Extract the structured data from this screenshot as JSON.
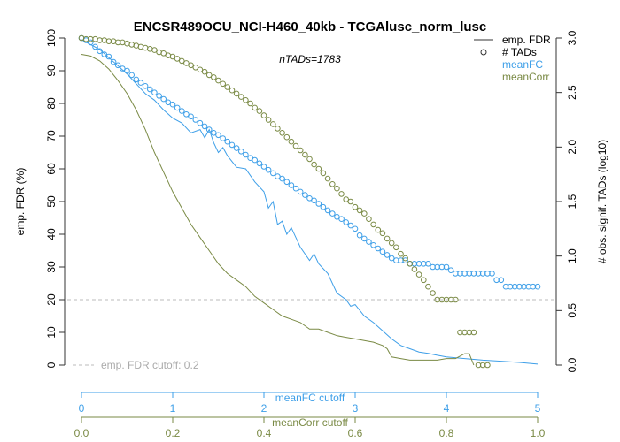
{
  "chart_data": {
    "type": "line",
    "title": "ENCSR489OCU_NCI-H460_40kb - TCGAlusc_norm_lusc",
    "subtitle": "nTADs=1783",
    "ylabel_left": "emp. FDR (%)",
    "ylabel_right": "# obs. signif. TADs (log10)",
    "xaxis_meanFC": {
      "label": "meanFC cutoff",
      "range": [
        0,
        5
      ],
      "ticks": [
        "0",
        "1",
        "2",
        "3",
        "4",
        "5"
      ],
      "color": "#3E9FE8"
    },
    "xaxis_meanCorr": {
      "label": "meanCorr cutoff",
      "range": [
        0,
        1
      ],
      "ticks": [
        "0.0",
        "0.2",
        "0.4",
        "0.6",
        "0.8",
        "1.0"
      ],
      "color": "#7A8A45"
    },
    "yaxis_left": {
      "range": [
        0,
        100
      ],
      "ticks": [
        "0",
        "10",
        "20",
        "30",
        "40",
        "50",
        "60",
        "70",
        "80",
        "90",
        "100"
      ]
    },
    "yaxis_right": {
      "range": [
        0,
        3
      ],
      "ticks": [
        "0.0",
        "0.5",
        "1.0",
        "1.5",
        "2.0",
        "2.5",
        "3.0"
      ]
    },
    "cutoff": {
      "value": 20,
      "label": "emp. FDR cutoff: 0.2",
      "color": "#BBBBBB"
    },
    "legend": {
      "position": "top-right",
      "items": [
        {
          "label": "emp. FDR",
          "symbol": "line",
          "color": "#333333"
        },
        {
          "label": "# TADs",
          "symbol": "circle",
          "color": "#333333"
        },
        {
          "label": "meanFC",
          "symbol": "none",
          "color": "#3E9FE8"
        },
        {
          "label": "meanCorr",
          "symbol": "none",
          "color": "#7A8A45"
        }
      ]
    },
    "series": [
      {
        "name": "meanFC",
        "axis": "meanFC",
        "color": "#3E9FE8",
        "fdr": [
          [
            0,
            99.5
          ],
          [
            0.1,
            98
          ],
          [
            0.2,
            96.5
          ],
          [
            0.3,
            94
          ],
          [
            0.4,
            91.5
          ],
          [
            0.5,
            89
          ],
          [
            0.6,
            86
          ],
          [
            0.7,
            83
          ],
          [
            0.8,
            81
          ],
          [
            0.9,
            78
          ],
          [
            1.0,
            75.5
          ],
          [
            1.1,
            74
          ],
          [
            1.2,
            71
          ],
          [
            1.3,
            72
          ],
          [
            1.35,
            69.5
          ],
          [
            1.4,
            72
          ],
          [
            1.45,
            68
          ],
          [
            1.5,
            65
          ],
          [
            1.55,
            66.5
          ],
          [
            1.6,
            64
          ],
          [
            1.7,
            60.5
          ],
          [
            1.8,
            60
          ],
          [
            1.9,
            56
          ],
          [
            2.0,
            53
          ],
          [
            2.05,
            48
          ],
          [
            2.1,
            50
          ],
          [
            2.15,
            43
          ],
          [
            2.2,
            44
          ],
          [
            2.25,
            40
          ],
          [
            2.3,
            42
          ],
          [
            2.4,
            36
          ],
          [
            2.5,
            32
          ],
          [
            2.55,
            34
          ],
          [
            2.6,
            31
          ],
          [
            2.7,
            28
          ],
          [
            2.8,
            22
          ],
          [
            2.9,
            20
          ],
          [
            2.95,
            18
          ],
          [
            3.0,
            18.5
          ],
          [
            3.1,
            15
          ],
          [
            3.2,
            13
          ],
          [
            3.3,
            10.5
          ],
          [
            3.4,
            8
          ],
          [
            3.5,
            6
          ],
          [
            3.6,
            5
          ],
          [
            3.7,
            4
          ],
          [
            3.8,
            3.6
          ],
          [
            3.9,
            3
          ],
          [
            4.0,
            2.5
          ],
          [
            4.2,
            2
          ],
          [
            4.4,
            1.5
          ],
          [
            4.6,
            1.2
          ],
          [
            4.8,
            0.8
          ],
          [
            5.0,
            0.3
          ]
        ],
        "tads": [
          [
            0,
            3.0
          ],
          [
            0.05,
            2.98
          ],
          [
            0.1,
            2.96
          ],
          [
            0.15,
            2.92
          ],
          [
            0.2,
            2.88
          ],
          [
            0.25,
            2.85
          ],
          [
            0.3,
            2.83
          ],
          [
            0.35,
            2.78
          ],
          [
            0.4,
            2.75
          ],
          [
            0.45,
            2.72
          ],
          [
            0.5,
            2.7
          ],
          [
            0.55,
            2.66
          ],
          [
            0.6,
            2.62
          ],
          [
            0.65,
            2.59
          ],
          [
            0.7,
            2.56
          ],
          [
            0.75,
            2.53
          ],
          [
            0.8,
            2.5
          ],
          [
            0.85,
            2.47
          ],
          [
            0.9,
            2.44
          ],
          [
            0.95,
            2.41
          ],
          [
            1.0,
            2.39
          ],
          [
            1.05,
            2.36
          ],
          [
            1.1,
            2.33
          ],
          [
            1.15,
            2.3
          ],
          [
            1.2,
            2.28
          ],
          [
            1.25,
            2.25
          ],
          [
            1.3,
            2.22
          ],
          [
            1.35,
            2.19
          ],
          [
            1.4,
            2.16
          ],
          [
            1.45,
            2.13
          ],
          [
            1.5,
            2.11
          ],
          [
            1.55,
            2.08
          ],
          [
            1.6,
            2.05
          ],
          [
            1.65,
            2.02
          ],
          [
            1.7,
            1.99
          ],
          [
            1.75,
            1.96
          ],
          [
            1.8,
            1.93
          ],
          [
            1.85,
            1.9
          ],
          [
            1.9,
            1.88
          ],
          [
            1.95,
            1.85
          ],
          [
            2.0,
            1.82
          ],
          [
            2.05,
            1.79
          ],
          [
            2.1,
            1.76
          ],
          [
            2.15,
            1.73
          ],
          [
            2.2,
            1.71
          ],
          [
            2.25,
            1.68
          ],
          [
            2.3,
            1.65
          ],
          [
            2.35,
            1.62
          ],
          [
            2.4,
            1.59
          ],
          [
            2.45,
            1.56
          ],
          [
            2.5,
            1.53
          ],
          [
            2.55,
            1.51
          ],
          [
            2.6,
            1.48
          ],
          [
            2.65,
            1.45
          ],
          [
            2.7,
            1.42
          ],
          [
            2.75,
            1.39
          ],
          [
            2.8,
            1.36
          ],
          [
            2.85,
            1.34
          ],
          [
            2.9,
            1.31
          ],
          [
            2.95,
            1.28
          ],
          [
            3.0,
            1.25
          ],
          [
            3.05,
            1.19
          ],
          [
            3.1,
            1.16
          ],
          [
            3.15,
            1.13
          ],
          [
            3.2,
            1.1
          ],
          [
            3.25,
            1.07
          ],
          [
            3.3,
            1.04
          ],
          [
            3.35,
            1.01
          ],
          [
            3.4,
            0.98
          ],
          [
            3.45,
            0.96
          ],
          [
            3.5,
            0.96
          ],
          [
            3.55,
            0.96
          ],
          [
            3.6,
            0.93
          ],
          [
            3.65,
            0.93
          ],
          [
            3.7,
            0.93
          ],
          [
            3.75,
            0.93
          ],
          [
            3.8,
            0.93
          ],
          [
            3.85,
            0.9
          ],
          [
            3.9,
            0.9
          ],
          [
            3.95,
            0.9
          ],
          [
            4.0,
            0.9
          ],
          [
            4.05,
            0.87
          ],
          [
            4.1,
            0.84
          ],
          [
            4.15,
            0.84
          ],
          [
            4.2,
            0.84
          ],
          [
            4.25,
            0.84
          ],
          [
            4.3,
            0.84
          ],
          [
            4.35,
            0.84
          ],
          [
            4.4,
            0.84
          ],
          [
            4.45,
            0.84
          ],
          [
            4.5,
            0.84
          ],
          [
            4.55,
            0.78
          ],
          [
            4.6,
            0.78
          ],
          [
            4.65,
            0.72
          ],
          [
            4.7,
            0.72
          ],
          [
            4.75,
            0.72
          ],
          [
            4.8,
            0.72
          ],
          [
            4.85,
            0.72
          ],
          [
            4.9,
            0.72
          ],
          [
            4.95,
            0.72
          ],
          [
            5.0,
            0.72
          ]
        ]
      },
      {
        "name": "meanCorr",
        "axis": "meanCorr",
        "color": "#7A8A45",
        "fdr": [
          [
            0,
            95
          ],
          [
            0.02,
            94.5
          ],
          [
            0.04,
            93
          ],
          [
            0.06,
            90.5
          ],
          [
            0.08,
            87
          ],
          [
            0.1,
            83
          ],
          [
            0.12,
            78
          ],
          [
            0.14,
            72
          ],
          [
            0.16,
            65
          ],
          [
            0.18,
            59
          ],
          [
            0.2,
            53
          ],
          [
            0.22,
            48
          ],
          [
            0.24,
            43
          ],
          [
            0.26,
            39
          ],
          [
            0.28,
            35
          ],
          [
            0.3,
            31
          ],
          [
            0.32,
            28
          ],
          [
            0.34,
            26
          ],
          [
            0.36,
            24
          ],
          [
            0.38,
            21
          ],
          [
            0.4,
            19
          ],
          [
            0.42,
            17
          ],
          [
            0.44,
            15
          ],
          [
            0.46,
            14
          ],
          [
            0.48,
            13
          ],
          [
            0.5,
            11
          ],
          [
            0.52,
            11
          ],
          [
            0.54,
            10
          ],
          [
            0.56,
            9
          ],
          [
            0.58,
            8.5
          ],
          [
            0.6,
            8
          ],
          [
            0.62,
            7.5
          ],
          [
            0.64,
            7
          ],
          [
            0.66,
            6
          ],
          [
            0.67,
            5
          ],
          [
            0.68,
            2.5
          ],
          [
            0.7,
            2
          ],
          [
            0.72,
            1.5
          ],
          [
            0.74,
            1.5
          ],
          [
            0.76,
            1.5
          ],
          [
            0.78,
            1.5
          ],
          [
            0.8,
            2
          ],
          [
            0.82,
            2
          ],
          [
            0.84,
            3.5
          ],
          [
            0.85,
            3.5
          ],
          [
            0.86,
            0
          ]
        ],
        "tads": [
          [
            0,
            3.0
          ],
          [
            0.01,
            2.99
          ],
          [
            0.02,
            2.99
          ],
          [
            0.03,
            2.99
          ],
          [
            0.04,
            2.98
          ],
          [
            0.05,
            2.98
          ],
          [
            0.06,
            2.97
          ],
          [
            0.07,
            2.97
          ],
          [
            0.08,
            2.96
          ],
          [
            0.09,
            2.96
          ],
          [
            0.1,
            2.95
          ],
          [
            0.11,
            2.94
          ],
          [
            0.12,
            2.93
          ],
          [
            0.13,
            2.92
          ],
          [
            0.14,
            2.91
          ],
          [
            0.15,
            2.9
          ],
          [
            0.16,
            2.89
          ],
          [
            0.17,
            2.87
          ],
          [
            0.18,
            2.86
          ],
          [
            0.19,
            2.84
          ],
          [
            0.2,
            2.83
          ],
          [
            0.21,
            2.81
          ],
          [
            0.22,
            2.79
          ],
          [
            0.23,
            2.77
          ],
          [
            0.24,
            2.75
          ],
          [
            0.25,
            2.73
          ],
          [
            0.26,
            2.71
          ],
          [
            0.27,
            2.69
          ],
          [
            0.28,
            2.66
          ],
          [
            0.29,
            2.64
          ],
          [
            0.3,
            2.61
          ],
          [
            0.31,
            2.58
          ],
          [
            0.32,
            2.55
          ],
          [
            0.33,
            2.52
          ],
          [
            0.34,
            2.49
          ],
          [
            0.35,
            2.46
          ],
          [
            0.36,
            2.43
          ],
          [
            0.37,
            2.4
          ],
          [
            0.38,
            2.36
          ],
          [
            0.39,
            2.33
          ],
          [
            0.4,
            2.29
          ],
          [
            0.41,
            2.25
          ],
          [
            0.42,
            2.21
          ],
          [
            0.43,
            2.17
          ],
          [
            0.44,
            2.13
          ],
          [
            0.45,
            2.09
          ],
          [
            0.46,
            2.05
          ],
          [
            0.47,
            2.01
          ],
          [
            0.48,
            1.97
          ],
          [
            0.49,
            1.93
          ],
          [
            0.5,
            1.89
          ],
          [
            0.51,
            1.84
          ],
          [
            0.52,
            1.8
          ],
          [
            0.53,
            1.76
          ],
          [
            0.54,
            1.71
          ],
          [
            0.55,
            1.66
          ],
          [
            0.56,
            1.62
          ],
          [
            0.57,
            1.57
          ],
          [
            0.58,
            1.52
          ],
          [
            0.59,
            1.5
          ],
          [
            0.6,
            1.45
          ],
          [
            0.61,
            1.42
          ],
          [
            0.62,
            1.39
          ],
          [
            0.63,
            1.34
          ],
          [
            0.64,
            1.29
          ],
          [
            0.65,
            1.24
          ],
          [
            0.66,
            1.21
          ],
          [
            0.67,
            1.16
          ],
          [
            0.68,
            1.12
          ],
          [
            0.69,
            1.08
          ],
          [
            0.7,
            1.02
          ],
          [
            0.71,
            0.98
          ],
          [
            0.72,
            0.93
          ],
          [
            0.73,
            0.88
          ],
          [
            0.74,
            0.83
          ],
          [
            0.75,
            0.78
          ],
          [
            0.76,
            0.72
          ],
          [
            0.77,
            0.66
          ],
          [
            0.78,
            0.6
          ],
          [
            0.79,
            0.6
          ],
          [
            0.8,
            0.6
          ],
          [
            0.81,
            0.6
          ],
          [
            0.82,
            0.6
          ],
          [
            0.83,
            0.3
          ],
          [
            0.84,
            0.3
          ],
          [
            0.85,
            0.3
          ],
          [
            0.86,
            0.3
          ],
          [
            0.87,
            0.0
          ],
          [
            0.88,
            0.0
          ],
          [
            0.89,
            0.0
          ]
        ]
      }
    ]
  }
}
